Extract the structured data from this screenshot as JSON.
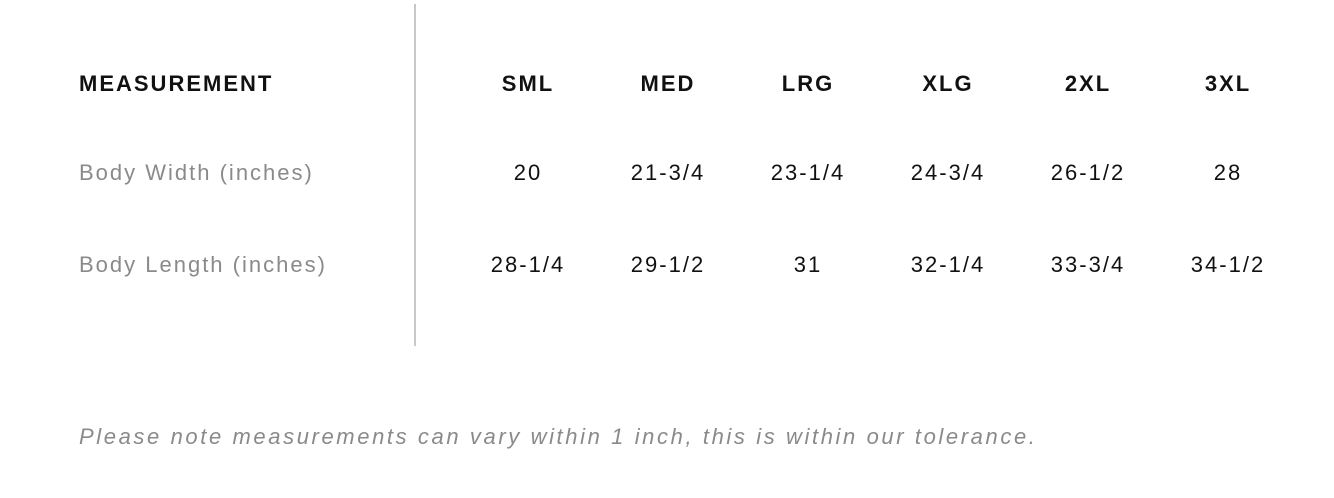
{
  "table": {
    "header": [
      "MEASUREMENT",
      "SML",
      "MED",
      "LRG",
      "XLG",
      "2XL",
      "3XL"
    ],
    "rows": [
      [
        "Body Width (inches)",
        "20",
        "21-3/4",
        "23-1/4",
        "24-3/4",
        "26-1/2",
        "28"
      ],
      [
        "Body Length (inches)",
        "28-1/4",
        "29-1/2",
        "31",
        "32-1/4",
        "33-3/4",
        "34-1/2"
      ]
    ]
  },
  "note": "Please note measurements can vary within 1 inch, this is within our tolerance."
}
